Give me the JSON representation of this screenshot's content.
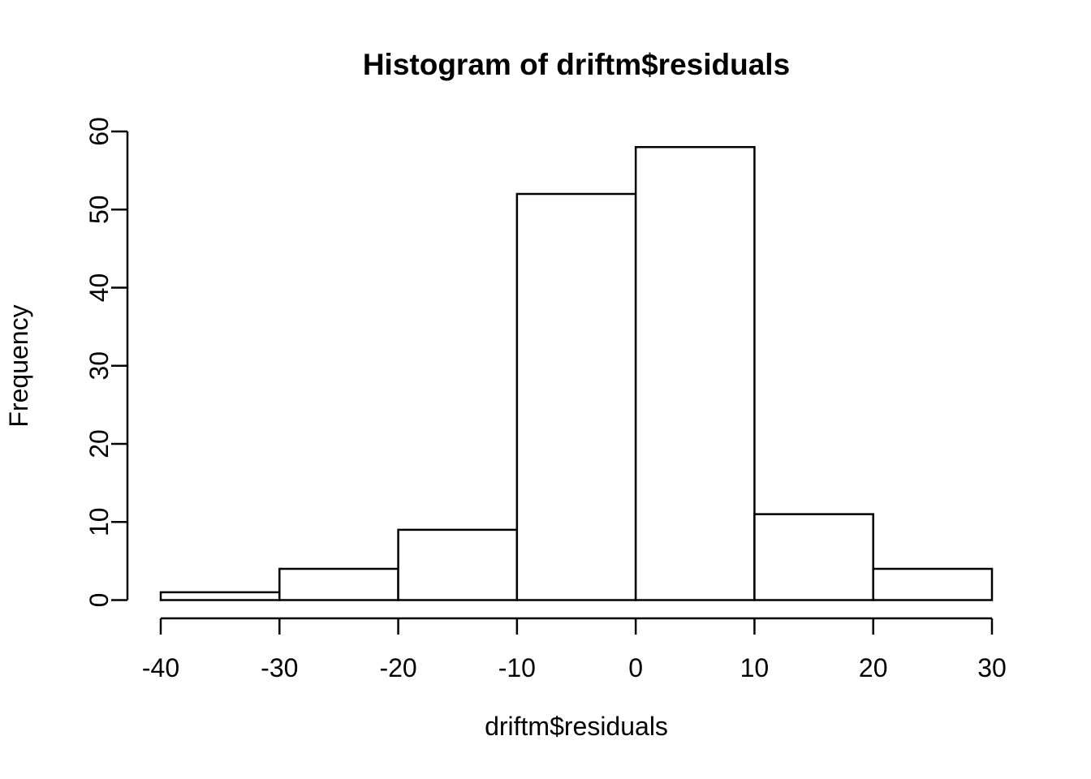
{
  "chart_data": {
    "type": "bar",
    "subtype": "histogram",
    "title": "Histogram of driftm$residuals",
    "xlabel": "driftm$residuals",
    "ylabel": "Frequency",
    "bin_edges": [
      -40,
      -30,
      -20,
      -10,
      0,
      10,
      20,
      30
    ],
    "counts": [
      1,
      4,
      9,
      52,
      58,
      11,
      4
    ],
    "x_ticks": [
      -40,
      -30,
      -20,
      -10,
      0,
      10,
      20,
      30
    ],
    "y_ticks": [
      0,
      10,
      20,
      30,
      40,
      50,
      60
    ],
    "xlim": [
      -40,
      30
    ],
    "ylim": [
      0,
      60
    ],
    "grid": false,
    "legend_position": "none",
    "colors": {
      "bar_fill": "#ffffff",
      "bar_stroke": "#000000",
      "axis": "#000000",
      "text": "#000000",
      "background": "#ffffff"
    }
  }
}
